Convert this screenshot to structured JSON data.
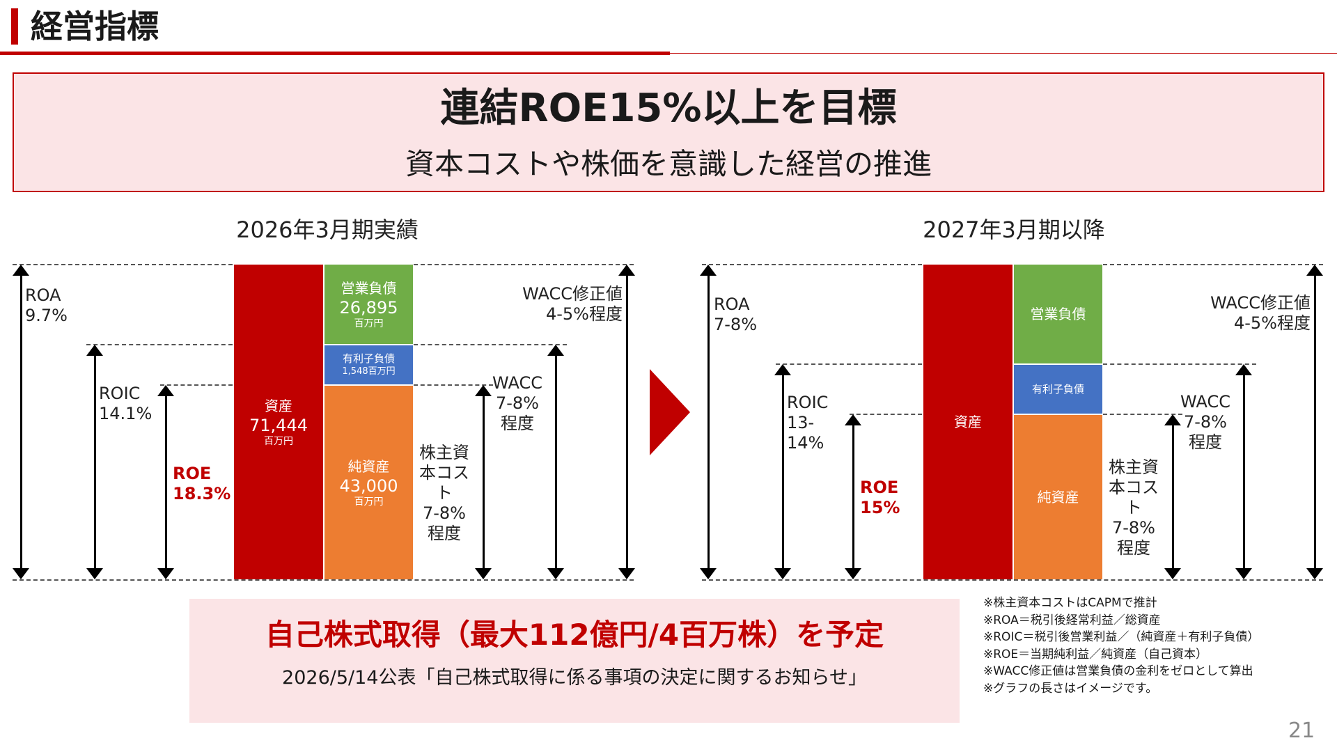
{
  "header": {
    "title": "経営指標"
  },
  "banner": {
    "title": "連結ROE15%以上を目標",
    "subtitle": "資本コストや株価を意識した経営の推進"
  },
  "left": {
    "title": "2026年3月期実績",
    "roa_label": "ROA",
    "roa_value": "9.7%",
    "roic_label": "ROIC",
    "roic_value": "14.1%",
    "roe_label": "ROE",
    "roe_value": "18.3%",
    "assets": {
      "label": "資産",
      "value": "71,444",
      "unit": "百万円"
    },
    "op_liab": {
      "label": "営業負債",
      "value": "26,895",
      "unit": "百万円"
    },
    "int_debt": {
      "label": "有利子負債",
      "value": "1,548百万円"
    },
    "net_assets": {
      "label": "純資産",
      "value": "43,000",
      "unit": "百万円"
    },
    "wacc_adj": {
      "line1": "WACC修正値",
      "line2": "4-5%程度"
    },
    "wacc": {
      "line1": "WACC",
      "line2": "7-8%",
      "line3": "程度"
    },
    "coe": {
      "line1": "株主資",
      "line2": "本コスト",
      "line3": "7-8%",
      "line4": "程度"
    }
  },
  "right": {
    "title": "2027年3月期以降",
    "roa_label": "ROA",
    "roa_value": "7-8%",
    "roic_label": "ROIC",
    "roic_value1": "13-",
    "roic_value2": "14%",
    "roe_label": "ROE",
    "roe_value": "15%",
    "assets": {
      "label": "資産"
    },
    "op_liab": {
      "label": "営業負債"
    },
    "int_debt": {
      "label": "有利子負債"
    },
    "net_assets": {
      "label": "純資産"
    },
    "wacc_adj": {
      "line1": "WACC修正値",
      "line2": "4-5%程度"
    },
    "wacc": {
      "line1": "WACC",
      "line2": "7-8%",
      "line3": "程度"
    },
    "coe": {
      "line1": "株主資",
      "line2": "本コスト",
      "line3": "7-8%",
      "line4": "程度"
    }
  },
  "buyback": {
    "title": "自己株式取得（最大112億円/4百万株）を予定",
    "subtitle": "2026/5/14公表「自己株式取得に係る事項の決定に関するお知らせ」"
  },
  "notes": [
    "※株主資本コストはCAPMで推計",
    "※ROA＝税引後経常利益／総資産",
    "※ROIC＝税引後営業利益／（純資産＋有利子負債）",
    "※ROE＝当期純利益／純資産（自己資本）",
    "※WACC修正値は営業負債の金利をゼロとして算出",
    "※グラフの長さはイメージです。"
  ],
  "page_number": "21",
  "colors": {
    "accent": "#c00000",
    "green": "#70ad47",
    "blue": "#4472c4",
    "orange": "#ed7d31",
    "pink": "#fbe4e6"
  }
}
